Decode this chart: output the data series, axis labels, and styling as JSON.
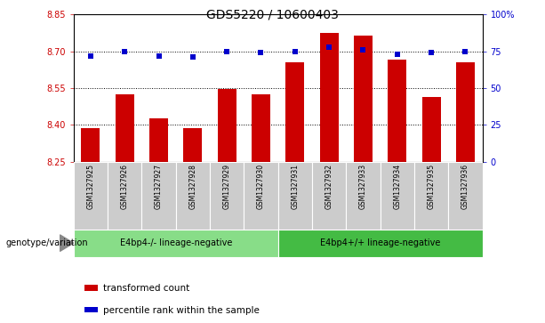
{
  "title": "GDS5220 / 10600403",
  "samples": [
    "GSM1327925",
    "GSM1327926",
    "GSM1327927",
    "GSM1327928",
    "GSM1327929",
    "GSM1327930",
    "GSM1327931",
    "GSM1327932",
    "GSM1327933",
    "GSM1327934",
    "GSM1327935",
    "GSM1327936"
  ],
  "red_values": [
    8.385,
    8.525,
    8.425,
    8.385,
    8.545,
    8.525,
    8.655,
    8.775,
    8.765,
    8.665,
    8.515,
    8.655
  ],
  "blue_values": [
    72,
    75,
    72,
    71,
    75,
    74,
    75,
    78,
    76,
    73,
    74,
    75
  ],
  "ylim_left": [
    8.25,
    8.85
  ],
  "ylim_right": [
    0,
    100
  ],
  "yticks_left": [
    8.25,
    8.4,
    8.55,
    8.7,
    8.85
  ],
  "yticks_right": [
    0,
    25,
    50,
    75,
    100
  ],
  "ytick_labels_right": [
    "0",
    "25",
    "50",
    "75",
    "100%"
  ],
  "hlines": [
    8.4,
    8.55,
    8.7
  ],
  "group1_label": "E4bp4-/- lineage-negative",
  "group2_label": "E4bp4+/+ lineage-negative",
  "genotype_label": "genotype/variation",
  "legend_red": "transformed count",
  "legend_blue": "percentile rank within the sample",
  "bar_color": "#cc0000",
  "blue_color": "#0000cc",
  "group_bg_color": "#cccccc",
  "group1_fill": "#88dd88",
  "group2_fill": "#44bb44",
  "title_fontsize": 10,
  "tick_fontsize": 7,
  "legend_fontsize": 7.5,
  "bar_width": 0.55
}
